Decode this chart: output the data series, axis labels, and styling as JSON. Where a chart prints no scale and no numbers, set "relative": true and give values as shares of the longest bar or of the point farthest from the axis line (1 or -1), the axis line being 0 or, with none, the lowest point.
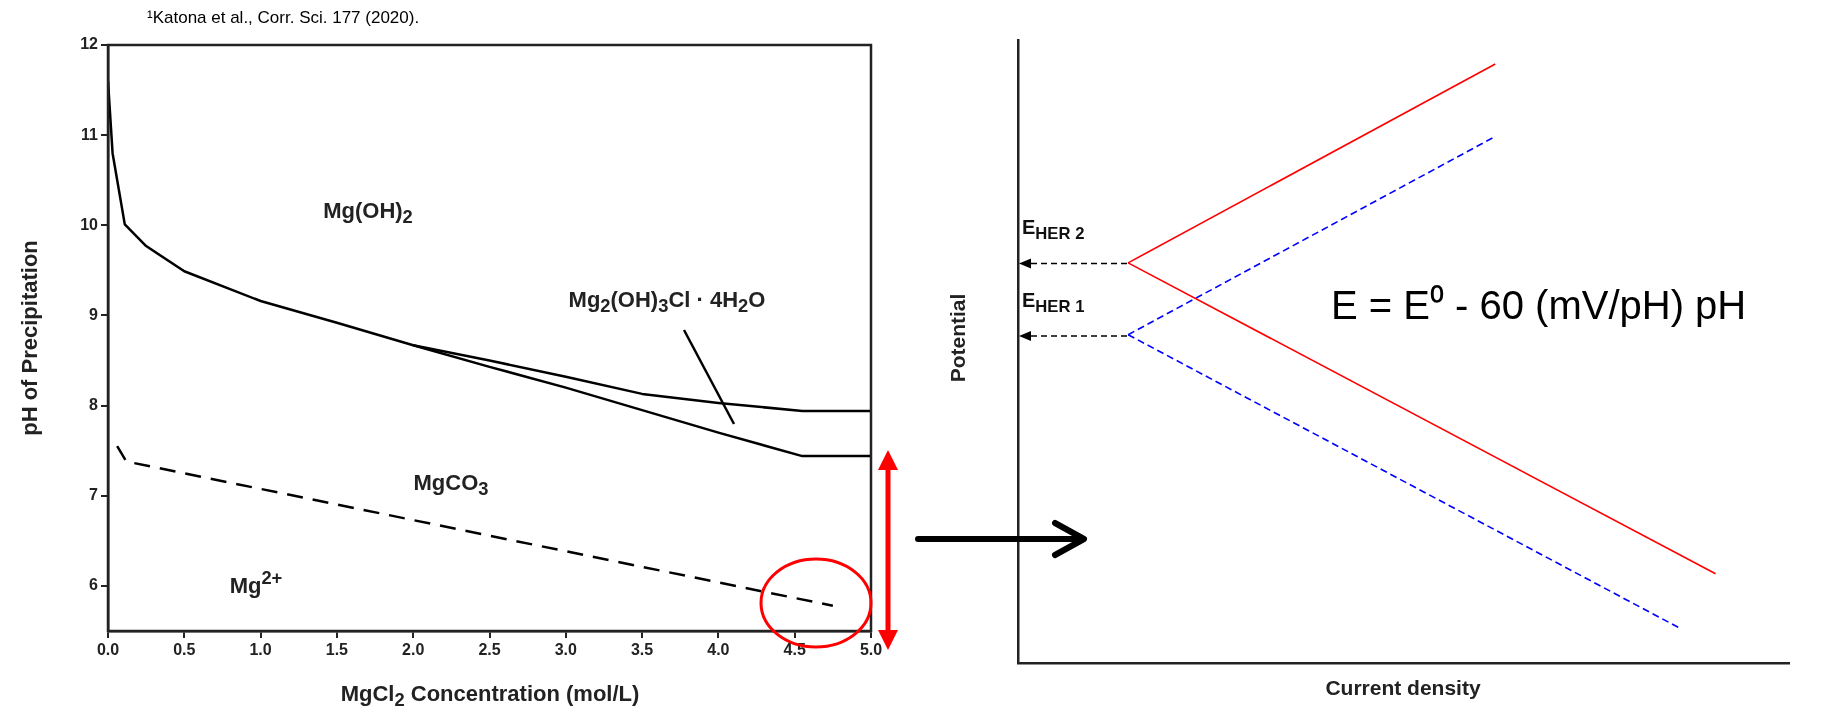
{
  "chart_data": [
    {
      "type": "line",
      "xlabel": "MgCl$_{2}$ Concentration (mol/L)",
      "ylabel": "pH of Precipitation",
      "xlim": [
        0,
        5
      ],
      "xticks": [
        {
          "value": 0,
          "label": "0.0"
        },
        {
          "value": 0.5,
          "label": "0.5"
        },
        {
          "value": 1,
          "label": "1.0"
        },
        {
          "value": 1.5,
          "label": "1.5"
        },
        {
          "value": 2,
          "label": "2.0"
        },
        {
          "value": 2.5,
          "label": "2.5"
        },
        {
          "value": 3,
          "label": "3.0"
        },
        {
          "value": 3.5,
          "label": "3.5"
        },
        {
          "value": 4,
          "label": "4.0"
        },
        {
          "value": 4.5,
          "label": "4.5"
        },
        {
          "value": 5,
          "label": "5.0"
        }
      ],
      "ylim": [
        5.5,
        12
      ],
      "yticks": [
        6,
        7,
        8,
        9,
        10,
        11,
        12
      ],
      "grid": false,
      "legend": false,
      "marker": "none",
      "line_style": "solid",
      "annotations": [
        "¹Katona et al., Corr. Sci. 177 (2020).",
        "Mg(OH)$_{2}$",
        "Mg$_{2}$(OH)$_{3}$Cl · 4H$_{2}$O",
        "MgCO$_{3}$",
        "Mg$^{2+}$"
      ],
      "series": [
        {
          "color": "#000000",
          "x": [
            0,
            0.03,
            0.11,
            0.25,
            0.5,
            1,
            1.5,
            2,
            2.5,
            3,
            3.5,
            4,
            4.55,
            5
          ],
          "values": [
            11.6,
            10.8,
            10.01,
            9.77,
            9.49,
            9.16,
            8.92,
            8.67,
            8.5,
            8.32,
            8.13,
            8.03,
            7.94,
            7.94
          ]
        },
        {
          "color": "#000000",
          "x": [
            2,
            2.5,
            3,
            3.5,
            4,
            4.55,
            5
          ],
          "values": [
            8.67,
            8.43,
            8.2,
            7.95,
            7.7,
            7.44,
            7.44
          ]
        },
        {
          "color": "#000000",
          "x": [
            0.06,
            0.12,
            4.75
          ],
          "values": [
            7.55,
            7.38,
            5.78
          ],
          "line_style": "dashed"
        }
      ]
    },
    {
      "type": "line",
      "relative": true,
      "xlabel": "Current density",
      "ylabel": "Potential",
      "marker": "none",
      "categories": [
        null,
        null,
        null,
        null,
        null,
        null,
        null,
        null,
        null,
        null,
        null,
        null,
        null,
        null,
        null,
        null,
        null,
        null,
        null,
        null,
        null,
        null
      ],
      "annotations": [
        "E = E⁰ - 60 (mV/pH) pH",
        "E$_{HER 2}$",
        "E$_{HER 1}$"
      ],
      "series": [
        {
          "color": "#ff0000",
          "values": [
            null,
            null,
            null,
            0.668,
            null,
            null,
            null,
            null,
            null,
            null,
            null,
            null,
            null,
            1,
            null,
            null,
            null,
            null,
            null,
            null,
            null,
            null
          ]
        },
        {
          "color": "#ff0000",
          "values": [
            null,
            null,
            null,
            0.668,
            null,
            null,
            null,
            null,
            null,
            null,
            null,
            null,
            null,
            null,
            null,
            null,
            null,
            null,
            null,
            0.149,
            null,
            null
          ]
        },
        {
          "color": "#0000ff",
          "values": [
            null,
            null,
            null,
            0.548,
            null,
            null,
            null,
            null,
            null,
            null,
            null,
            null,
            null,
            0.879,
            null,
            null,
            null,
            null,
            null,
            null,
            null,
            null
          ],
          "line_style": "dashed"
        },
        {
          "color": "#0000ff",
          "values": [
            null,
            null,
            null,
            0.548,
            null,
            null,
            null,
            null,
            null,
            null,
            null,
            null,
            null,
            null,
            null,
            null,
            null,
            null,
            0.059,
            null,
            null,
            null
          ],
          "line_style": "dashed"
        }
      ]
    }
  ]
}
